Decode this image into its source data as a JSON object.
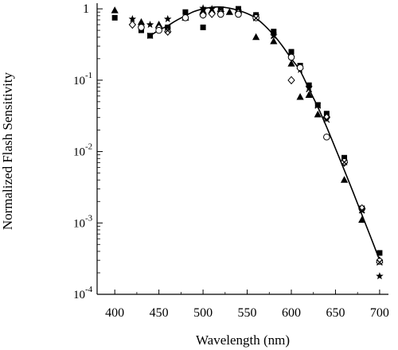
{
  "chart_data": {
    "type": "scatter",
    "title": "",
    "xlabel": "Wavelength (nm)",
    "ylabel": "Normalized Flash Sensitivity",
    "xlim": [
      380,
      710
    ],
    "ylim": [
      0.0001,
      1.2
    ],
    "yscale": "log",
    "grid": false,
    "x_ticks": [
      400,
      450,
      500,
      550,
      600,
      650,
      700
    ],
    "x_tick_labels": [
      "400",
      "450",
      "500",
      "550",
      "600",
      "650",
      "700"
    ],
    "y_ticks": [
      {
        "value": 1,
        "label": "1",
        "base": "",
        "exp": ""
      },
      {
        "value": 0.1,
        "label": "",
        "base": "10",
        "exp": "-1"
      },
      {
        "value": 0.01,
        "label": "",
        "base": "10",
        "exp": "-2"
      },
      {
        "value": 0.001,
        "label": "",
        "base": "10",
        "exp": "-3"
      },
      {
        "value": 0.0001,
        "label": "",
        "base": "10",
        "exp": "-4"
      }
    ],
    "series": [
      {
        "marker": "square",
        "color": "#000000",
        "x": [
          400,
          430,
          440,
          460,
          480,
          500,
          520,
          540,
          560,
          580,
          600,
          610,
          620,
          630,
          640,
          660,
          680,
          700
        ],
        "y": [
          0.75,
          0.5,
          0.42,
          0.55,
          0.9,
          0.55,
          0.95,
          1.0,
          0.82,
          0.48,
          0.25,
          0.16,
          0.085,
          0.045,
          0.034,
          0.0082,
          0.0016,
          0.00038
        ]
      },
      {
        "marker": "triangle",
        "color": "#000000",
        "x": [
          400,
          430,
          450,
          480,
          500,
          510,
          530,
          560,
          580,
          600,
          610,
          620,
          630,
          660,
          680,
          700
        ],
        "y": [
          0.95,
          0.65,
          0.6,
          0.75,
          0.93,
          0.95,
          0.9,
          0.4,
          0.35,
          0.17,
          0.058,
          0.062,
          0.033,
          0.004,
          0.0011,
          0.0003
        ]
      },
      {
        "marker": "star",
        "color": "#000000",
        "x": [
          420,
          440,
          460,
          500,
          510,
          540,
          560,
          580,
          610,
          620,
          640,
          660,
          680,
          700
        ],
        "y": [
          0.72,
          0.6,
          0.72,
          1.02,
          1.0,
          0.93,
          0.8,
          0.42,
          0.14,
          0.08,
          0.03,
          0.0072,
          0.0015,
          0.00018
        ]
      },
      {
        "marker": "diamond",
        "color": "#000000",
        "x": [
          420,
          450,
          460,
          500,
          510,
          520,
          540,
          600,
          640,
          660,
          680
        ],
        "y": [
          0.6,
          0.54,
          0.48,
          0.83,
          0.85,
          0.92,
          0.88,
          0.1,
          0.03,
          0.007,
          0.0016
        ]
      },
      {
        "marker": "circle",
        "color": "#000000",
        "x": [
          430,
          450,
          480,
          500,
          520,
          540,
          560,
          600,
          610,
          640,
          660,
          700
        ],
        "y": [
          0.55,
          0.5,
          0.75,
          0.82,
          0.84,
          0.84,
          0.75,
          0.21,
          0.15,
          0.016,
          0.0072,
          0.00029
        ]
      },
      {
        "marker": "cross",
        "color": "#000000",
        "x": [
          440,
          460,
          500,
          520,
          560,
          580,
          620,
          630,
          640,
          660,
          680,
          700
        ],
        "y": [
          0.42,
          0.5,
          0.92,
          0.98,
          0.74,
          0.42,
          0.075,
          0.044,
          0.028,
          0.0071,
          0.0015,
          0.00028
        ]
      }
    ],
    "curve": {
      "x": [
        440,
        450,
        460,
        470,
        480,
        490,
        500,
        510,
        520,
        530,
        540,
        550,
        560,
        570,
        580,
        590,
        600,
        610,
        620,
        630,
        640,
        650,
        660,
        670,
        680,
        690,
        700
      ],
      "y": [
        0.42,
        0.5,
        0.58,
        0.69,
        0.8,
        0.92,
        1.0,
        1.05,
        1.06,
        1.02,
        0.95,
        0.86,
        0.74,
        0.58,
        0.43,
        0.3,
        0.2,
        0.135,
        0.075,
        0.042,
        0.022,
        0.011,
        0.0055,
        0.0027,
        0.0013,
        0.00063,
        0.0003
      ]
    }
  }
}
